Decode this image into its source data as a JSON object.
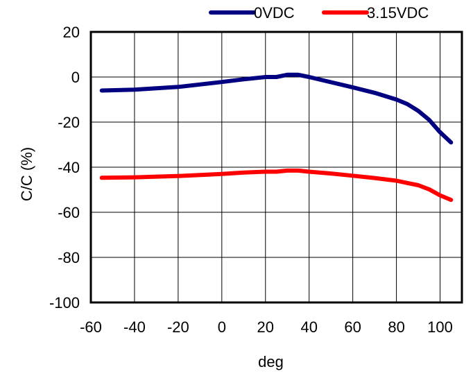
{
  "chart_data": {
    "type": "line",
    "title": "",
    "xlabel": "deg",
    "ylabel": "C/C (%)",
    "xlim": [
      -60,
      110
    ],
    "ylim": [
      -100,
      20
    ],
    "xticks": [
      -60,
      -40,
      -20,
      0,
      20,
      40,
      60,
      80,
      100
    ],
    "yticks": [
      20,
      0,
      -20,
      -40,
      -60,
      -80,
      -100
    ],
    "xtick_labels": [
      "-60",
      "-40",
      "-20",
      "0",
      "20",
      "40",
      "60",
      "80",
      "100"
    ],
    "ytick_labels": [
      "20",
      "0",
      "-20",
      "-40",
      "-60",
      "-80",
      "-100"
    ],
    "grid": true,
    "legend_position": "top-right",
    "series": [
      {
        "name": "0VDC",
        "color": "#000080",
        "x": [
          -55,
          -40,
          -20,
          0,
          10,
          20,
          25,
          30,
          35,
          40,
          50,
          60,
          70,
          80,
          85,
          90,
          95,
          100,
          105
        ],
        "y": [
          -6,
          -5.6,
          -4.4,
          -2.2,
          -1,
          0,
          0,
          1,
          1,
          0,
          -2.3,
          -4.6,
          -7,
          -10,
          -12,
          -15,
          -19,
          -24.5,
          -29
        ]
      },
      {
        "name": "3.15VDC",
        "color": "#ff0000",
        "x": [
          -55,
          -40,
          -20,
          0,
          10,
          20,
          25,
          30,
          35,
          40,
          50,
          60,
          70,
          80,
          85,
          90,
          95,
          100,
          105
        ],
        "y": [
          -44.7,
          -44.5,
          -43.9,
          -43,
          -42.4,
          -42,
          -42,
          -41.5,
          -41.5,
          -42,
          -42.8,
          -43.8,
          -44.8,
          -46,
          -47,
          -48,
          -49.8,
          -52.5,
          -54.5
        ]
      }
    ]
  }
}
